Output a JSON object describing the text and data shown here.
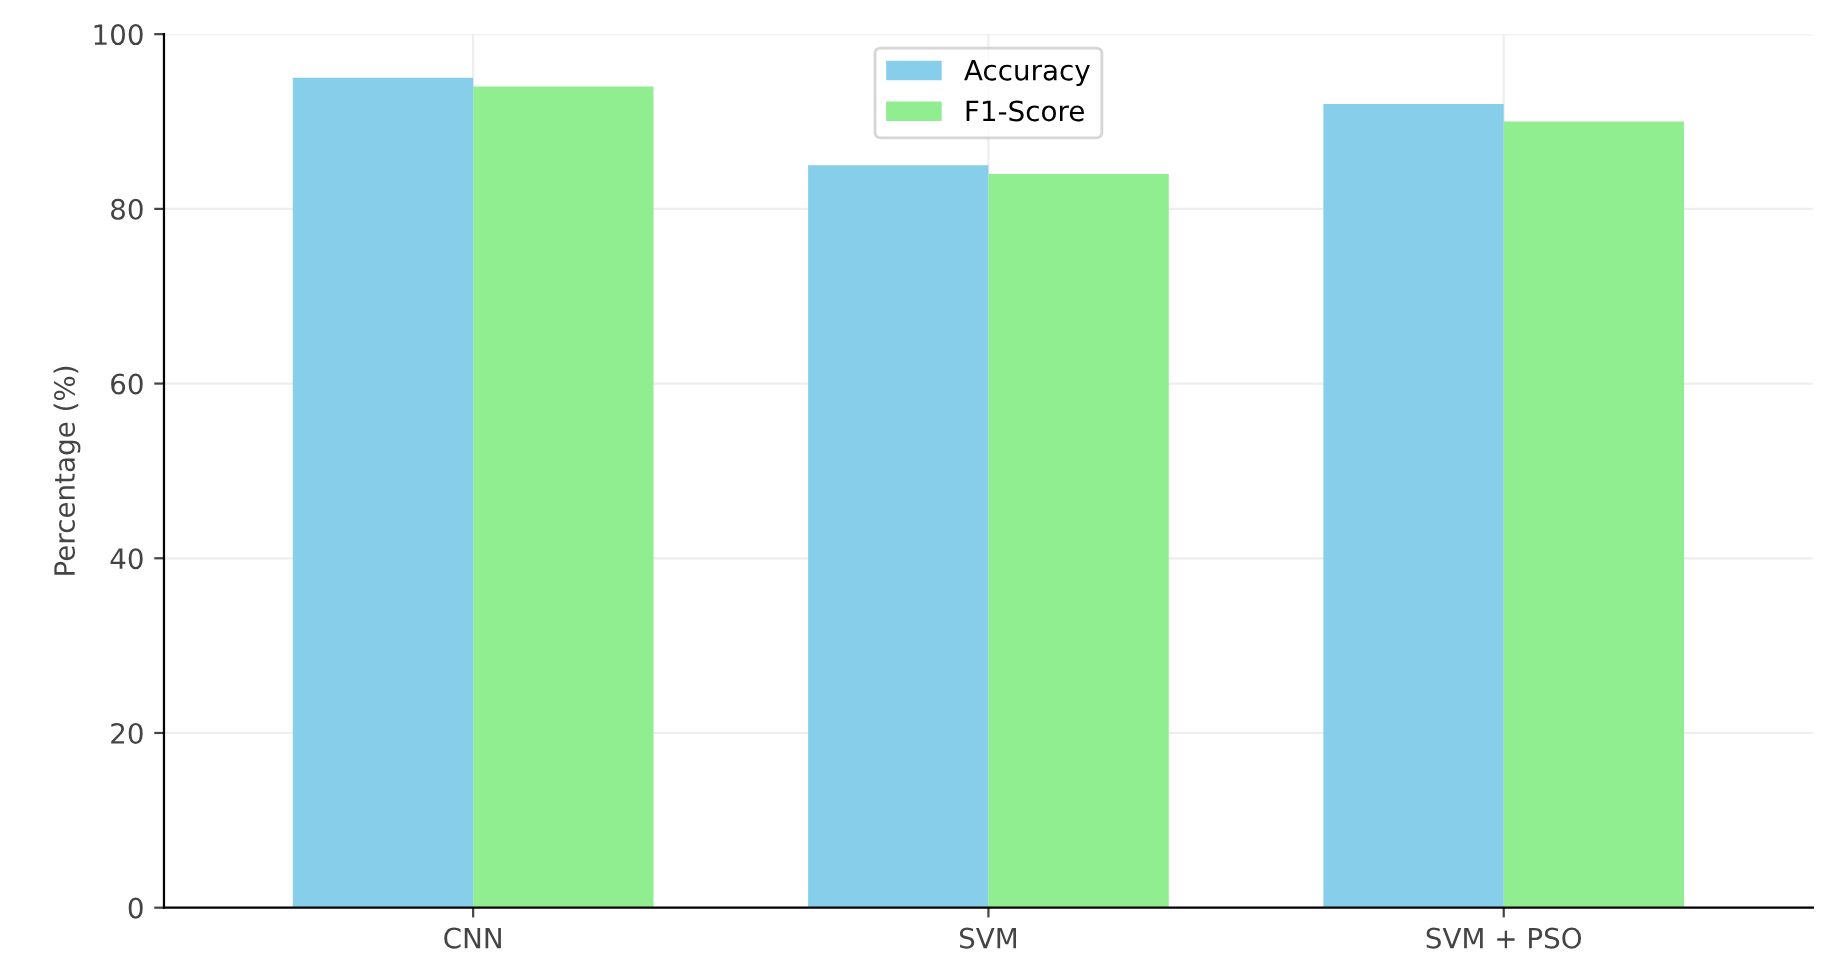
{
  "chart_data": {
    "type": "bar",
    "ylabel": "Percentage (%)",
    "categories": [
      "CNN",
      "SVM",
      "SVM + PSO"
    ],
    "series": [
      {
        "name": "Accuracy",
        "color": "#87ceeb",
        "values": [
          95,
          85,
          92
        ]
      },
      {
        "name": "F1-Score",
        "color": "#90ee90",
        "values": [
          94,
          84,
          90
        ]
      }
    ],
    "ylim": [
      0,
      100
    ],
    "yticks": [
      0,
      20,
      40,
      60,
      80,
      100
    ],
    "grid": true,
    "legend": "top"
  }
}
